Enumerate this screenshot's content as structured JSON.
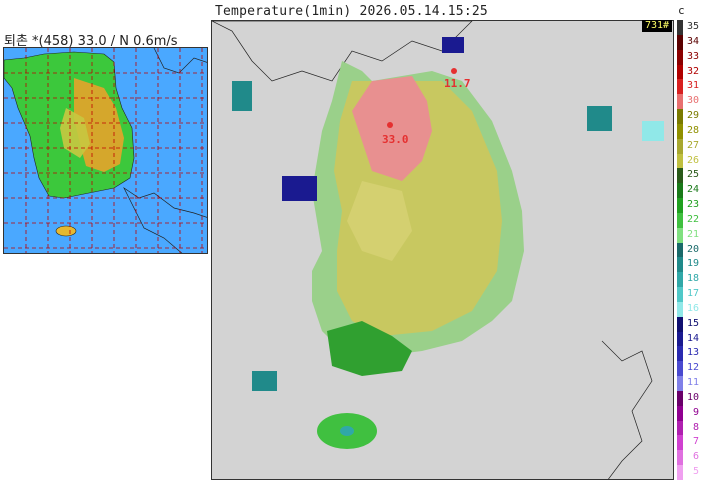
{
  "header": {
    "title": "Temperature(1min) 2026.05.14.15:25",
    "unit": "c"
  },
  "station": {
    "info": "퇴촌 *(458) 33.0 / N 0.6m/s"
  },
  "map": {
    "count_badge": "731#",
    "max_label": "33.0",
    "min_label": "11.7"
  },
  "legend": {
    "items": [
      {
        "value": "35",
        "color": "#333333"
      },
      {
        "value": "34",
        "color": "#5a0000"
      },
      {
        "value": "33",
        "color": "#8b0000"
      },
      {
        "value": "32",
        "color": "#b00000"
      },
      {
        "value": "31",
        "color": "#d82020"
      },
      {
        "value": "30",
        "color": "#e87070"
      },
      {
        "value": "29",
        "color": "#7a7a00"
      },
      {
        "value": "28",
        "color": "#909000"
      },
      {
        "value": "27",
        "color": "#a8a830"
      },
      {
        "value": "26",
        "color": "#c0c040"
      },
      {
        "value": "25",
        "color": "#2a5a1a"
      },
      {
        "value": "24",
        "color": "#1a7a1a"
      },
      {
        "value": "23",
        "color": "#20a020"
      },
      {
        "value": "22",
        "color": "#40c040"
      },
      {
        "value": "21",
        "color": "#80e080"
      },
      {
        "value": "20",
        "color": "#1a6a6a"
      },
      {
        "value": "19",
        "color": "#208a8a"
      },
      {
        "value": "18",
        "color": "#30a8a8"
      },
      {
        "value": "17",
        "color": "#50c8c8"
      },
      {
        "value": "16",
        "color": "#90e8e8"
      },
      {
        "value": "15",
        "color": "#101070"
      },
      {
        "value": "14",
        "color": "#1a1a90"
      },
      {
        "value": "13",
        "color": "#2a2ab0"
      },
      {
        "value": "12",
        "color": "#4a4ad0"
      },
      {
        "value": "11",
        "color": "#8080e8"
      },
      {
        "value": "10",
        "color": "#6a006a"
      },
      {
        "value": "9",
        "color": "#900090"
      },
      {
        "value": "8",
        "color": "#b020b0"
      },
      {
        "value": "7",
        "color": "#d040d0"
      },
      {
        "value": "6",
        "color": "#e070e0"
      },
      {
        "value": "5",
        "color": "#f0a0f0"
      }
    ]
  }
}
